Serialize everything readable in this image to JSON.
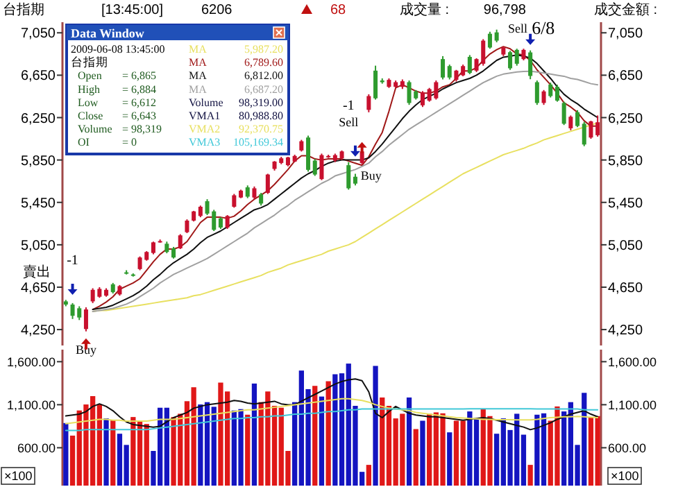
{
  "chart_data": [
    {
      "type": "candlestick",
      "annotations": [
        "台指期",
        "[13:45:00]",
        "6206",
        "68",
        "成交量 :",
        "96,798",
        "成交金額 :",
        "-1",
        "賣出",
        "Buy",
        "-1",
        "Sell",
        "Buy",
        "Sell",
        "6/8",
        "Data Window",
        "2009-06-08  13:45:00",
        "台指期",
        "Open",
        "= 6,865",
        "High",
        "= 6,884",
        "Low",
        "= 6,612",
        "Close",
        "= 6,643",
        "Volume",
        "= 98,319",
        "OI",
        "= 0",
        "MA",
        "5,987.20",
        "MA",
        "6,789.60",
        "MA",
        "6,812.00",
        "MA",
        "6,687.20",
        "Volume",
        "98,319.00",
        "VMA1",
        "80,988.80",
        "VMA2",
        "92,370.75",
        "VMA3",
        "105,169.34"
      ],
      "categories": [
        null,
        null,
        null,
        null,
        null,
        null,
        null,
        null,
        null,
        null,
        null,
        null,
        null,
        null,
        null,
        null,
        null,
        null,
        null,
        null,
        null,
        null,
        null,
        null,
        null,
        null,
        null,
        null,
        null,
        null,
        null,
        null,
        null,
        null,
        null,
        null,
        null,
        null,
        null,
        null,
        null,
        null,
        null,
        null,
        null,
        null,
        null,
        null,
        null,
        null,
        null,
        null,
        null,
        null,
        null,
        null,
        null,
        null,
        null,
        null,
        null,
        null,
        null,
        null,
        null,
        null,
        null,
        null,
        null,
        null,
        null,
        null,
        null,
        null,
        null,
        null,
        null,
        null,
        null,
        null
      ],
      "ohlc": [
        [
          4516,
          4530,
          4470,
          4486
        ],
        [
          4486,
          4500,
          4350,
          4380
        ],
        [
          4451,
          4470,
          4340,
          4364
        ],
        [
          4255,
          4460,
          4233,
          4440
        ],
        [
          4516,
          4640,
          4500,
          4625
        ],
        [
          4560,
          4650,
          4550,
          4634
        ],
        [
          4570,
          4640,
          4560,
          4625
        ],
        [
          4677,
          4690,
          4590,
          4603
        ],
        [
          4582,
          4670,
          4570,
          4660
        ],
        [
          4790,
          4810,
          4770,
          4780
        ],
        [
          4770,
          4780,
          4750,
          4760
        ],
        [
          4821,
          4940,
          4810,
          4930
        ],
        [
          4908,
          4990,
          4900,
          4982
        ],
        [
          4973,
          5080,
          4960,
          5073
        ],
        [
          5080,
          5100,
          5070,
          5085
        ],
        [
          5060,
          5080,
          4970,
          4982
        ],
        [
          5017,
          5030,
          4920,
          4930
        ],
        [
          5017,
          5150,
          5010,
          5139
        ],
        [
          5169,
          5290,
          5160,
          5278
        ],
        [
          5278,
          5370,
          5270,
          5365
        ],
        [
          5322,
          5420,
          5310,
          5409
        ],
        [
          5461,
          5480,
          5330,
          5344
        ],
        [
          5365,
          5380,
          5180,
          5191
        ],
        [
          5300,
          5310,
          5200,
          5213
        ],
        [
          5213,
          5330,
          5200,
          5322
        ],
        [
          5409,
          5530,
          5400,
          5517
        ],
        [
          5496,
          5570,
          5490,
          5561
        ],
        [
          5592,
          5610,
          5490,
          5504
        ],
        [
          5496,
          5600,
          5480,
          5583
        ],
        [
          5526,
          5540,
          5420,
          5439
        ],
        [
          5540,
          5720,
          5530,
          5713
        ],
        [
          5766,
          5840,
          5750,
          5835
        ],
        [
          5822,
          5880,
          5810,
          5866
        ],
        [
          5801,
          5880,
          5790,
          5875
        ],
        [
          5835,
          5900,
          5830,
          5888
        ],
        [
          5940,
          6040,
          5930,
          6027
        ],
        [
          6062,
          6080,
          5740,
          5757
        ],
        [
          5844,
          5860,
          5700,
          5713
        ],
        [
          5670,
          5910,
          5660,
          5896
        ],
        [
          5880,
          5900,
          5870,
          5888
        ],
        [
          5844,
          5910,
          5830,
          5896
        ],
        [
          5866,
          5940,
          5850,
          5931
        ],
        [
          5801,
          5830,
          5570,
          5583
        ],
        [
          5692,
          5720,
          5610,
          5627
        ],
        [
          5822,
          5940,
          5810,
          5931
        ],
        [
          6323,
          6470,
          6300,
          6453
        ],
        [
          6693,
          6740,
          6420,
          6432
        ],
        [
          6600,
          6620,
          6570,
          6584
        ],
        [
          6540,
          6620,
          6530,
          6606
        ],
        [
          6540,
          6600,
          6530,
          6584
        ],
        [
          6540,
          6610,
          6520,
          6593
        ],
        [
          6584,
          6600,
          6370,
          6388
        ],
        [
          6497,
          6510,
          6420,
          6432
        ],
        [
          6366,
          6500,
          6350,
          6488
        ],
        [
          6410,
          6530,
          6400,
          6519
        ],
        [
          6432,
          6600,
          6420,
          6584
        ],
        [
          6802,
          6830,
          6610,
          6628
        ],
        [
          6736,
          6750,
          6610,
          6628
        ],
        [
          6606,
          6700,
          6590,
          6693
        ],
        [
          6649,
          6750,
          6640,
          6736
        ],
        [
          6823,
          6840,
          6660,
          6671
        ],
        [
          6693,
          6810,
          6680,
          6802
        ],
        [
          6758,
          6990,
          6740,
          6976
        ],
        [
          7041,
          7060,
          6900,
          6911
        ],
        [
          7054,
          7080,
          6960,
          6976
        ],
        [
          6845,
          6920,
          6830,
          6911
        ],
        [
          6867,
          6880,
          6700,
          6715
        ],
        [
          6889,
          6900,
          6740,
          6758
        ],
        [
          6802,
          6900,
          6790,
          6889
        ],
        [
          6865,
          6884,
          6612,
          6643
        ],
        [
          6584,
          6600,
          6370,
          6388
        ],
        [
          6388,
          6510,
          6370,
          6497
        ],
        [
          6562,
          6580,
          6440,
          6453
        ],
        [
          6540,
          6560,
          6400,
          6410
        ],
        [
          6388,
          6400,
          6180,
          6192
        ],
        [
          6149,
          6270,
          6130,
          6258
        ],
        [
          6301,
          6320,
          6160,
          6171
        ],
        [
          6192,
          6210,
          5980,
          5996
        ],
        [
          6062,
          6220,
          6050,
          6214
        ],
        [
          6084,
          6270,
          6070,
          6206
        ]
      ],
      "colors": [
        "#2e9b2e",
        "#2e9b2e",
        "#2e9b2e",
        "#c8102e",
        "#c8102e",
        "#c8102e",
        "#c8102e",
        "#2e9b2e",
        "#c8102e",
        "#2e9b2e",
        "#2e9b2e",
        "#c8102e",
        "#c8102e",
        "#c8102e",
        "#c8102e",
        "#2e9b2e",
        "#2e9b2e",
        "#c8102e",
        "#c8102e",
        "#c8102e",
        "#c8102e",
        "#2e9b2e",
        "#2e9b2e",
        "#2e9b2e",
        "#c8102e",
        "#c8102e",
        "#c8102e",
        "#2e9b2e",
        "#c8102e",
        "#2e9b2e",
        "#c8102e",
        "#c8102e",
        "#c8102e",
        "#c8102e",
        "#c8102e",
        "#c8102e",
        "#2e9b2e",
        "#2e9b2e",
        "#c8102e",
        "#c8102e",
        "#c8102e",
        "#c8102e",
        "#2e9b2e",
        "#2e9b2e",
        "#c8102e",
        "#c8102e",
        "#2e9b2e",
        "#2e9b2e",
        "#c8102e",
        "#c8102e",
        "#c8102e",
        "#2e9b2e",
        "#2e9b2e",
        "#c8102e",
        "#c8102e",
        "#c8102e",
        "#2e9b2e",
        "#2e9b2e",
        "#c8102e",
        "#c8102e",
        "#2e9b2e",
        "#c8102e",
        "#c8102e",
        "#2e9b2e",
        "#2e9b2e",
        "#c8102e",
        "#2e9b2e",
        "#2e9b2e",
        "#c8102e",
        "#2e9b2e",
        "#2e9b2e",
        "#c8102e",
        "#2e9b2e",
        "#2e9b2e",
        "#2e9b2e",
        "#c8102e",
        "#2e9b2e",
        "#2e9b2e",
        "#c8102e",
        "#c8102e"
      ],
      "series": [
        {
          "type": "line",
          "color": "#e8e060",
          "values": [
            null,
            null,
            null,
            null,
            4420,
            4430,
            4430,
            4440,
            4450,
            4460,
            4470,
            4480,
            4490,
            4500,
            4510,
            4520,
            4530,
            4540,
            4550,
            4570,
            4580,
            4600,
            4620,
            4640,
            4660,
            4680,
            4700,
            4720,
            4740,
            4760,
            4790,
            4810,
            4830,
            4860,
            4880,
            4900,
            4920,
            4940,
            4960,
            4990,
            5010,
            5030,
            5050,
            5080,
            5120,
            5160,
            5200,
            5240,
            5280,
            5320,
            5360,
            5400,
            5440,
            5480,
            5520,
            5560,
            5600,
            5640,
            5680,
            5720,
            5750,
            5780,
            5810,
            5840,
            5870,
            5900,
            5920,
            5940,
            5960,
            5987,
            6010,
            6040,
            6060,
            6080,
            6100,
            6120,
            6140,
            6160,
            6180,
            6200
          ]
        },
        {
          "type": "line",
          "color": "#a01818",
          "values": [
            null,
            null,
            null,
            null,
            4440,
            4470,
            4510,
            4560,
            4630,
            4660,
            4690,
            4730,
            4810,
            4890,
            4960,
            5010,
            5010,
            5030,
            5080,
            5170,
            5260,
            5310,
            5310,
            5310,
            5300,
            5320,
            5370,
            5430,
            5480,
            5520,
            5560,
            5620,
            5690,
            5760,
            5840,
            5890,
            5890,
            5860,
            5850,
            5860,
            5860,
            5860,
            5840,
            5820,
            5800,
            5880,
            6000,
            6110,
            6310,
            6530,
            6560,
            6530,
            6500,
            6480,
            6480,
            6500,
            6540,
            6560,
            6620,
            6690,
            6690,
            6720,
            6790,
            6850,
            6890,
            6920,
            6900,
            6850,
            6840,
            6790,
            6700,
            6630,
            6560,
            6480,
            6390,
            6350,
            6300,
            6220,
            6170,
            6170
          ]
        },
        {
          "type": "line",
          "color": "#101010",
          "values": [
            null,
            null,
            null,
            null,
            4440,
            4450,
            4460,
            4480,
            4510,
            4540,
            4570,
            4610,
            4660,
            4720,
            4770,
            4830,
            4880,
            4920,
            4960,
            5010,
            5070,
            5120,
            5150,
            5180,
            5220,
            5260,
            5300,
            5340,
            5380,
            5400,
            5430,
            5480,
            5530,
            5580,
            5630,
            5680,
            5720,
            5750,
            5790,
            5820,
            5840,
            5850,
            5850,
            5850,
            5850,
            5870,
            5930,
            6000,
            6080,
            6160,
            6240,
            6310,
            6370,
            6420,
            6450,
            6480,
            6520,
            6550,
            6580,
            6600,
            6620,
            6650,
            6690,
            6740,
            6790,
            6820,
            6830,
            6840,
            6830,
            6812,
            6760,
            6690,
            6620,
            6540,
            6470,
            6420,
            6380,
            6330,
            6290,
            6250
          ]
        },
        {
          "type": "line",
          "color": "#a0a0a0",
          "values": [
            null,
            null,
            null,
            null,
            4420,
            4430,
            4440,
            4450,
            4470,
            4490,
            4520,
            4560,
            4600,
            4640,
            4690,
            4730,
            4770,
            4800,
            4830,
            4860,
            4890,
            4920,
            4960,
            5000,
            5040,
            5080,
            5120,
            5160,
            5210,
            5250,
            5290,
            5330,
            5380,
            5420,
            5470,
            5510,
            5550,
            5590,
            5630,
            5660,
            5700,
            5720,
            5740,
            5760,
            5790,
            5820,
            5880,
            5930,
            5990,
            6040,
            6090,
            6140,
            6180,
            6220,
            6260,
            6300,
            6340,
            6380,
            6420,
            6460,
            6500,
            6540,
            6580,
            6610,
            6640,
            6660,
            6670,
            6680,
            6685,
            6687,
            6680,
            6670,
            6660,
            6650,
            6640,
            6620,
            6610,
            6590,
            6570,
            6560
          ]
        }
      ],
      "ylim": [
        4100,
        7150
      ],
      "yticks": [
        {
          "value": 4250,
          "label": "4,250"
        },
        {
          "value": 4650,
          "label": "4,650"
        },
        {
          "value": 5050,
          "label": "5,050"
        },
        {
          "value": 5450,
          "label": "5,450"
        },
        {
          "value": 5850,
          "label": "5,850"
        },
        {
          "value": 6250,
          "label": "6,250"
        },
        {
          "value": 6650,
          "label": "6,650"
        },
        {
          "value": 7050,
          "label": "7,050"
        }
      ],
      "y2lim": [
        4100,
        7150
      ],
      "y2ticks": [
        {
          "value": 4250,
          "label": "4,250"
        },
        {
          "value": 4650,
          "label": "4,650"
        },
        {
          "value": 5050,
          "label": "5,050"
        },
        {
          "value": 5450,
          "label": "5,450"
        },
        {
          "value": 5850,
          "label": "5,850"
        },
        {
          "value": 6250,
          "label": "6,250"
        },
        {
          "value": 6650,
          "label": "6,650"
        },
        {
          "value": 7050,
          "label": "7,050"
        }
      ]
    },
    {
      "type": "bar",
      "ylabel": "×100",
      "y2label": "×100",
      "categories": [
        null,
        null,
        null,
        null,
        null,
        null,
        null,
        null,
        null,
        null,
        null,
        null,
        null,
        null,
        null,
        null,
        null,
        null,
        null,
        null,
        null,
        null,
        null,
        null,
        null,
        null,
        null,
        null,
        null,
        null,
        null,
        null,
        null,
        null,
        null,
        null,
        null,
        null,
        null,
        null,
        null,
        null,
        null,
        null,
        null,
        null,
        null,
        null,
        null,
        null,
        null,
        null,
        null,
        null,
        null,
        null,
        null,
        null,
        null,
        null,
        null,
        null,
        null,
        null,
        null,
        null,
        null,
        null,
        null,
        null,
        null,
        null,
        null,
        null,
        null,
        null,
        null,
        null,
        null,
        null
      ],
      "values": [
        887,
        741,
        1033,
        1103,
        1200,
        1103,
        941,
        925,
        763,
        633,
        957,
        903,
        876,
        563,
        1065,
        1065,
        957,
        995,
        1141,
        1303,
        1103,
        1130,
        1076,
        1357,
        1254,
        1033,
        1049,
        984,
        1346,
        1130,
        1254,
        1087,
        1065,
        563,
        1130,
        1497,
        1281,
        1319,
        1195,
        1373,
        1454,
        1465,
        1578,
        1087,
        320,
        401,
        1551,
        1184,
        1087,
        941,
        995,
        1184,
        817,
        914,
        995,
        1011,
        1000,
        779,
        914,
        914,
        1022,
        941,
        1049,
        968,
        763,
        941,
        806,
        995,
        752,
        401,
        984,
        1000,
        914,
        1080,
        1022,
        1130,
        633,
        1238,
        957,
        968
      ],
      "colors": [
        "#1414c0",
        "#e01818",
        "#e01818",
        "#e01818",
        "#e01818",
        "#e01818",
        "#1414c0",
        "#e01818",
        "#1414c0",
        "#1414c0",
        "#e01818",
        "#e01818",
        "#e01818",
        "#1414c0",
        "#1414c0",
        "#1414c0",
        "#e01818",
        "#e01818",
        "#e01818",
        "#e01818",
        "#1414c0",
        "#1414c0",
        "#1414c0",
        "#e01818",
        "#e01818",
        "#1414c0",
        "#1414c0",
        "#e01818",
        "#1414c0",
        "#e01818",
        "#e01818",
        "#e01818",
        "#e01818",
        "#e01818",
        "#1414c0",
        "#1414c0",
        "#1414c0",
        "#e01818",
        "#1414c0",
        "#e01818",
        "#1414c0",
        "#1414c0",
        "#1414c0",
        "#1414c0",
        "#1414c0",
        "#e01818",
        "#1414c0",
        "#e01818",
        "#e01818",
        "#e01818",
        "#e01818",
        "#1414c0",
        "#e01818",
        "#1414c0",
        "#e01818",
        "#e01818",
        "#e01818",
        "#1414c0",
        "#e01818",
        "#e01818",
        "#1414c0",
        "#1414c0",
        "#e01818",
        "#e01818",
        "#1414c0",
        "#1414c0",
        "#1414c0",
        "#1414c0",
        "#1414c0",
        "#e01818",
        "#1414c0",
        "#1414c0",
        "#e01818",
        "#e01818",
        "#1414c0",
        "#1414c0",
        "#1414c0",
        "#1414c0",
        "#e01818",
        "#e01818"
      ],
      "series": [
        {
          "type": "line",
          "color": "#101010",
          "values": [
            970,
            980,
            990,
            1020,
            1080,
            1110,
            1080,
            1030,
            960,
            900,
            870,
            860,
            850,
            840,
            850,
            900,
            950,
            980,
            1010,
            1060,
            1080,
            1100,
            1110,
            1120,
            1130,
            1150,
            1140,
            1120,
            1110,
            1120,
            1130,
            1140,
            1110,
            1100,
            1100,
            1140,
            1180,
            1220,
            1260,
            1300,
            1340,
            1370,
            1390,
            1400,
            1380,
            1250,
            1000,
            950,
            1020,
            1080,
            1040,
            1000,
            980,
            970,
            960,
            960,
            950,
            940,
            930,
            920,
            930,
            940,
            950,
            940,
            920,
            900,
            880,
            860,
            840,
            810,
            830,
            860,
            890,
            930,
            960,
            990,
            1010,
            1030,
            990,
            960
          ]
        },
        {
          "type": "line",
          "color": "#e8e060",
          "values": [
            880,
            890,
            900,
            910,
            920,
            930,
            930,
            920,
            920,
            910,
            910,
            910,
            910,
            920,
            930,
            930,
            930,
            940,
            950,
            960,
            970,
            980,
            990,
            1000,
            1010,
            1020,
            1030,
            1040,
            1040,
            1050,
            1060,
            1070,
            1080,
            1090,
            1100,
            1110,
            1120,
            1130,
            1140,
            1150,
            1160,
            1170,
            1170,
            1160,
            1150,
            1130,
            1100,
            1080,
            1060,
            1050,
            1040,
            1030,
            1010,
            1000,
            990,
            980,
            970,
            960,
            950,
            945,
            940,
            935,
            930,
            930,
            925,
            925,
            925,
            924,
            924,
            924,
            930,
            940,
            950,
            955,
            960,
            960,
            965,
            960,
            955,
            950
          ]
        },
        {
          "type": "line",
          "color": "#40c8d8",
          "values": [
            800,
            800,
            800,
            810,
            810,
            810,
            810,
            810,
            810,
            810,
            810,
            810,
            810,
            820,
            830,
            840,
            850,
            860,
            870,
            880,
            890,
            900,
            910,
            920,
            930,
            940,
            940,
            950,
            950,
            960,
            960,
            970,
            970,
            980,
            990,
            990,
            1000,
            1000,
            1010,
            1020,
            1020,
            1030,
            1040,
            1040,
            1050,
            1050,
            1050,
            1050,
            1050,
            1050,
            1050,
            1050,
            1050,
            1050,
            1050,
            1050,
            1050,
            1050,
            1050,
            1050,
            1052,
            1052,
            1052,
            1052,
            1052,
            1052,
            1052,
            1052,
            1052,
            1052,
            1050,
            1050,
            1050,
            1050,
            1050,
            1050,
            1050,
            1040,
            1040,
            1040
          ]
        }
      ],
      "ylim": [
        160,
        1740
      ],
      "yticks": [
        {
          "value": 600,
          "label": "600.00"
        },
        {
          "value": 1100,
          "label": "1,100.00"
        },
        {
          "value": 1600,
          "label": "1,600.00"
        }
      ],
      "y2lim": [
        160,
        1740
      ],
      "y2ticks": [
        {
          "value": 600,
          "label": "600.00"
        },
        {
          "value": 1100,
          "label": "1,100.00"
        },
        {
          "value": 1600,
          "label": "1,600.00"
        }
      ]
    }
  ]
}
